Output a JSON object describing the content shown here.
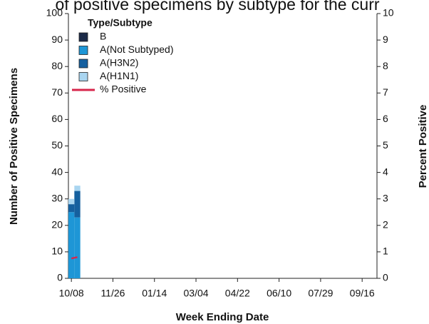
{
  "chart_data": {
    "type": "bar",
    "title": "of positive specimens by subtype for the curr",
    "x_label": "Week Ending Date",
    "y_label": "Number of Positive Specimens",
    "y2_label": "Percent Positive",
    "legend_title": "Type/Subtype",
    "legend_position": "upper left",
    "stacked": true,
    "categories": [
      "10/08",
      null,
      null,
      null,
      null,
      null,
      null,
      "11/26",
      null,
      null,
      null,
      null,
      null,
      null,
      "01/14",
      null,
      null,
      null,
      null,
      null,
      null,
      "03/04",
      null,
      null,
      null,
      null,
      null,
      null,
      "04/22",
      null,
      null,
      null,
      null,
      null,
      null,
      "06/10",
      null,
      null,
      null,
      null,
      null,
      null,
      "07/29",
      null,
      null,
      null,
      null,
      null,
      null,
      "09/16",
      null,
      null
    ],
    "series": [
      {
        "name": "B",
        "color": "#1b2a48",
        "values": [
          0,
          0,
          null,
          null,
          null,
          null,
          null,
          null,
          null,
          null,
          null,
          null,
          null,
          null,
          null,
          null,
          null,
          null,
          null,
          null,
          null,
          null,
          null,
          null,
          null,
          null,
          null,
          null,
          null,
          null,
          null,
          null,
          null,
          null,
          null,
          null,
          null,
          null,
          null,
          null,
          null,
          null,
          null,
          null,
          null,
          null,
          null,
          null,
          null,
          null,
          null,
          null
        ]
      },
      {
        "name": "A(Not Subtyped)",
        "color": "#1e96d6",
        "values": [
          25,
          23,
          null,
          null,
          null,
          null,
          null,
          null,
          null,
          null,
          null,
          null,
          null,
          null,
          null,
          null,
          null,
          null,
          null,
          null,
          null,
          null,
          null,
          null,
          null,
          null,
          null,
          null,
          null,
          null,
          null,
          null,
          null,
          null,
          null,
          null,
          null,
          null,
          null,
          null,
          null,
          null,
          null,
          null,
          null,
          null,
          null,
          null,
          null,
          null,
          null,
          null
        ]
      },
      {
        "name": "A(H3N2)",
        "color": "#15609f",
        "values": [
          3,
          10,
          null,
          null,
          null,
          null,
          null,
          null,
          null,
          null,
          null,
          null,
          null,
          null,
          null,
          null,
          null,
          null,
          null,
          null,
          null,
          null,
          null,
          null,
          null,
          null,
          null,
          null,
          null,
          null,
          null,
          null,
          null,
          null,
          null,
          null,
          null,
          null,
          null,
          null,
          null,
          null,
          null,
          null,
          null,
          null,
          null,
          null,
          null,
          null,
          null,
          null
        ]
      },
      {
        "name": "A(H1N1)",
        "color": "#a9d5f0",
        "values": [
          2,
          2,
          null,
          null,
          null,
          null,
          null,
          null,
          null,
          null,
          null,
          null,
          null,
          null,
          null,
          null,
          null,
          null,
          null,
          null,
          null,
          null,
          null,
          null,
          null,
          null,
          null,
          null,
          null,
          null,
          null,
          null,
          null,
          null,
          null,
          null,
          null,
          null,
          null,
          null,
          null,
          null,
          null,
          null,
          null,
          null,
          null,
          null,
          null,
          null,
          null,
          null
        ]
      },
      {
        "name": "% Positive",
        "color": "#d7264b",
        "type": "line",
        "axis": "y2",
        "values": [
          0.75,
          0.8,
          null,
          null,
          null,
          null,
          null,
          null,
          null,
          null,
          null,
          null,
          null,
          null,
          null,
          null,
          null,
          null,
          null,
          null,
          null,
          null,
          null,
          null,
          null,
          null,
          null,
          null,
          null,
          null,
          null,
          null,
          null,
          null,
          null,
          null,
          null,
          null,
          null,
          null,
          null,
          null,
          null,
          null,
          null,
          null,
          null,
          null,
          null,
          null,
          null,
          null
        ]
      }
    ],
    "ylim": [
      0,
      100
    ],
    "yticks": [
      0,
      10,
      20,
      30,
      40,
      50,
      60,
      70,
      80,
      90,
      100
    ],
    "y2lim": [
      0,
      10
    ],
    "y2ticks": [
      0,
      1,
      2,
      3,
      4,
      5,
      6,
      7,
      8,
      9,
      10
    ]
  }
}
